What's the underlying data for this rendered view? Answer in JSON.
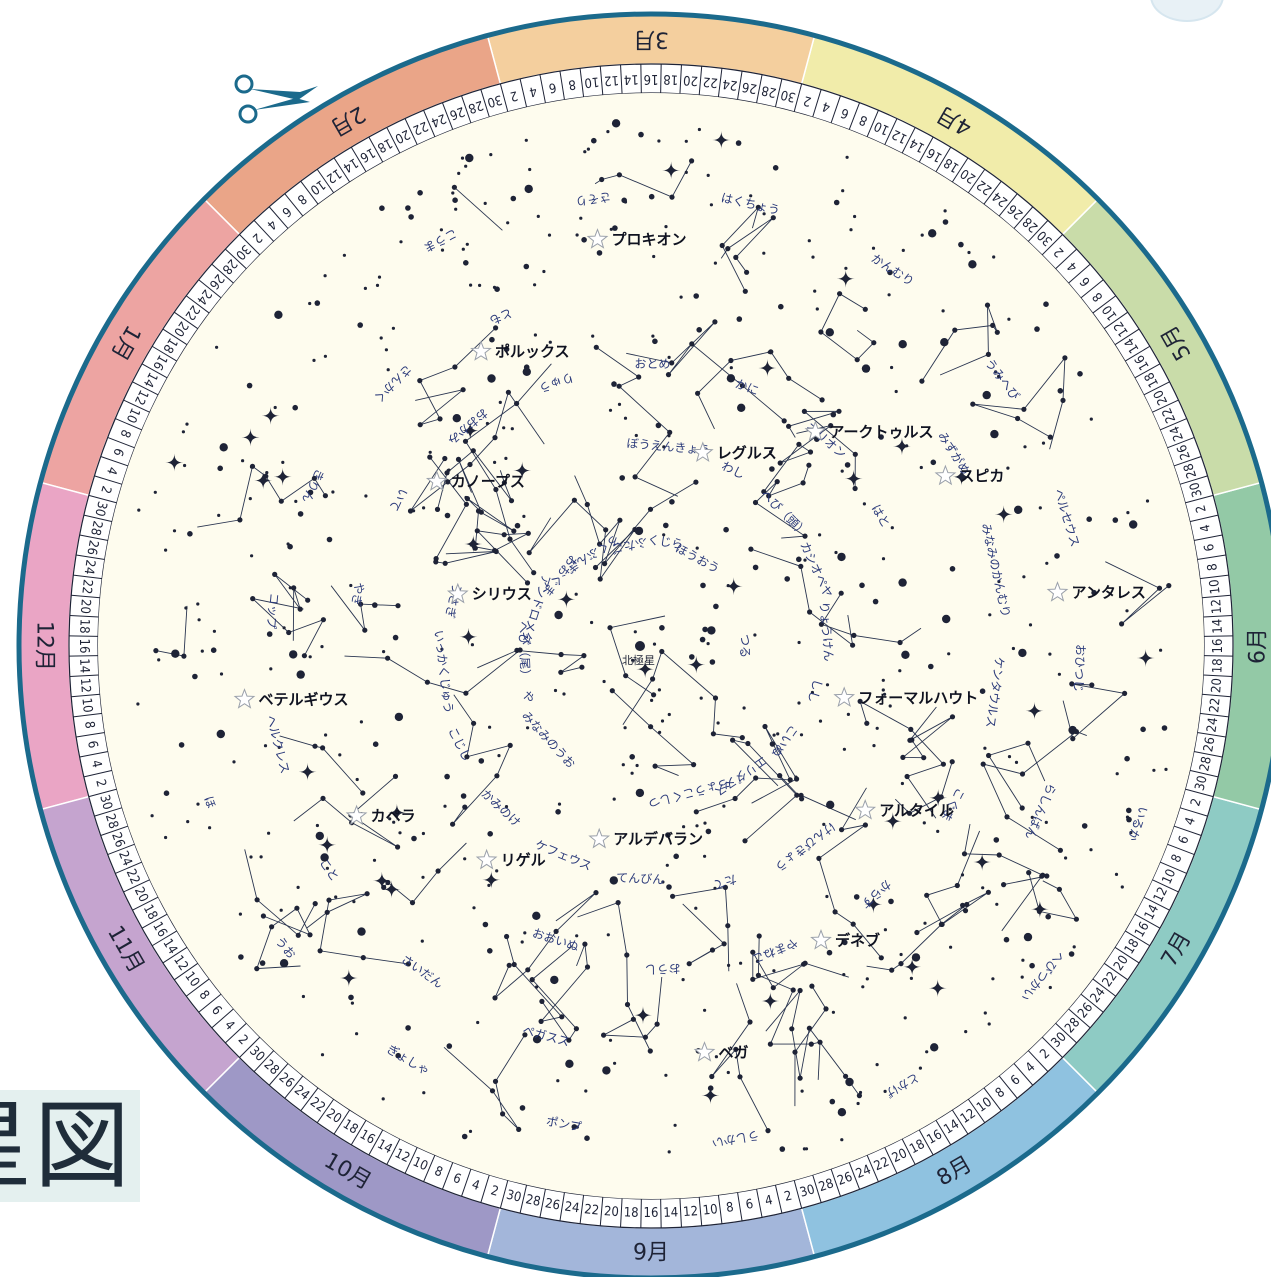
{
  "title": "星図",
  "ring_color": "#1b6a8c",
  "sky_color": "#fefcee",
  "line_color": "#2a3550",
  "months": [
    {
      "label": "9月",
      "color": "#a3b6da"
    },
    {
      "label": "8月",
      "color": "#8fc2e0"
    },
    {
      "label": "7月",
      "color": "#8ecbc4"
    },
    {
      "label": "6月",
      "color": "#93c9a6"
    },
    {
      "label": "5月",
      "color": "#c9dca9"
    },
    {
      "label": "4月",
      "color": "#f1ecaa"
    },
    {
      "label": "3月",
      "color": "#f4cf9e"
    },
    {
      "label": "2月",
      "color": "#eaa588"
    },
    {
      "label": "1月",
      "color": "#eda4a2"
    },
    {
      "label": "12月",
      "color": "#eaa5c5"
    },
    {
      "label": "11月",
      "color": "#c5a4cf"
    },
    {
      "label": "10月",
      "color": "#9e98c6"
    }
  ],
  "day_ticks_per_month": [
    "30",
    "28",
    "26",
    "24",
    "22",
    "20",
    "18",
    "16",
    "14",
    "12",
    "10",
    "8",
    "6",
    "4",
    "2"
  ],
  "polaris_label": "北極星",
  "bright_stars": [
    {
      "name": "フォーマルハウト"
    },
    {
      "name": "アルタイル"
    },
    {
      "name": "デネブ"
    },
    {
      "name": "ベガ"
    },
    {
      "name": "アルデバラン"
    },
    {
      "name": "リゲル"
    },
    {
      "name": "カペラ"
    },
    {
      "name": "ベテルギウス"
    },
    {
      "name": "シリウス"
    },
    {
      "name": "カノープス"
    },
    {
      "name": "ポルックス"
    },
    {
      "name": "プロキオン"
    },
    {
      "name": "レグルス"
    },
    {
      "name": "アークトゥルス"
    },
    {
      "name": "スピカ"
    },
    {
      "name": "アンタレス"
    }
  ],
  "constellations": [
    "つる",
    "みなみのうお",
    "ぼうえんきょう",
    "けんびきょう",
    "やぎ",
    "みずがめ",
    "ペガスス",
    "こうま",
    "いるか",
    "や",
    "わし",
    "たて",
    "いて",
    "みなみのかんむり",
    "さいだん",
    "さそり",
    "へびつかい",
    "へび（尾）",
    "へび（頭）",
    "てんびん",
    "おおかみ",
    "ケンタウルス",
    "こと",
    "はくちょう",
    "とかげ",
    "アンドロメダ",
    "カシオペヤ",
    "ケフェウス",
    "りゅう",
    "こぐま",
    "ヘルクレス",
    "かんむり",
    "うしかい",
    "おおぐま",
    "りょうけん",
    "かみのけ",
    "おとめ",
    "からす",
    "コップ",
    "うみへび",
    "ポンプ",
    "ろくぶんぎ",
    "しし",
    "こじし",
    "かに",
    "やまねこ",
    "きりん",
    "ペルセウス",
    "ぎょしゃ",
    "ふたご",
    "こいぬ",
    "いっかくじゅう",
    "オリオン",
    "おうし",
    "さんかく",
    "おひつじ",
    "うお",
    "くじら",
    "エリダヌス",
    "うさぎ",
    "はと",
    "おおいぬ",
    "とも",
    "らしんばん",
    "ほ",
    "ほうおう",
    "ちょうこくしつ"
  ]
}
